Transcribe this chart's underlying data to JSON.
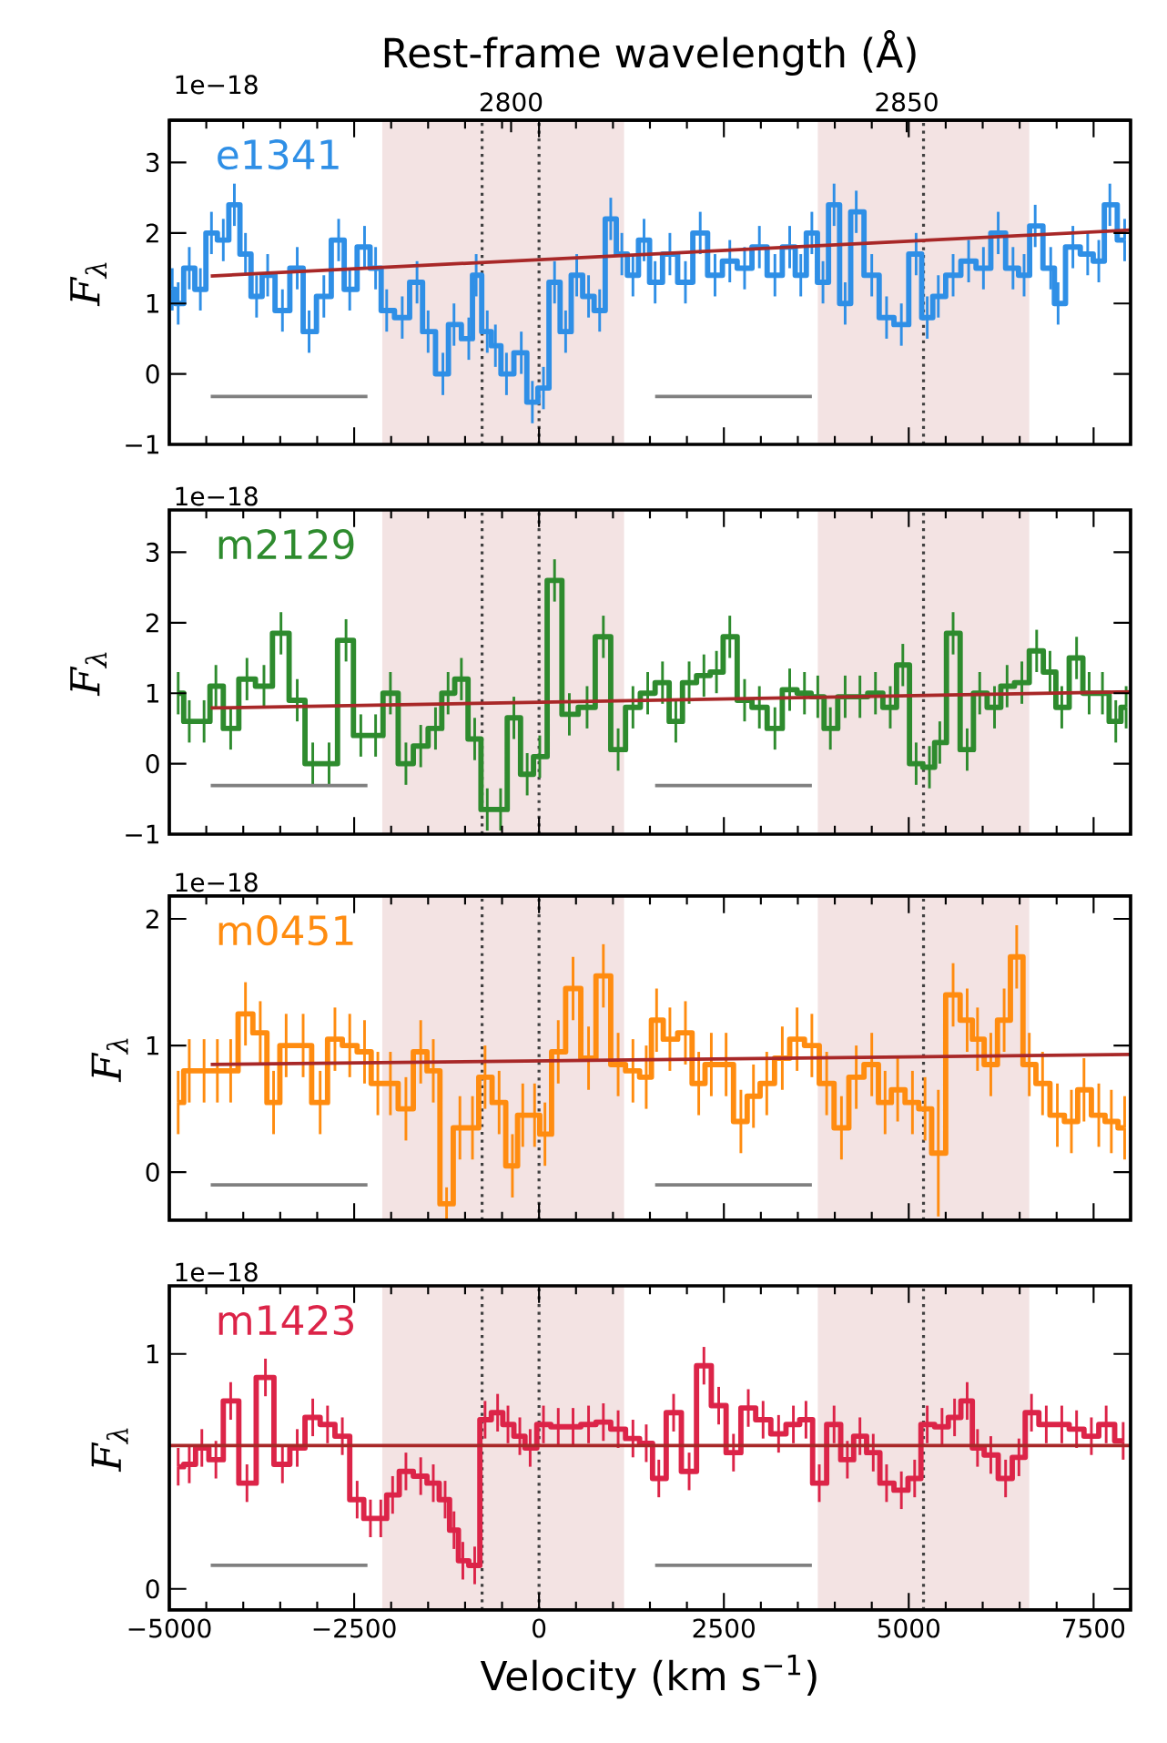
{
  "chart_data": [
    {
      "type": "step",
      "ylabel": "F$_{λ}$",
      "x2label": "Rest-frame wavelength (Å)",
      "annotations": [
        "1e−18"
      ],
      "xlim": [
        -5000,
        8000
      ],
      "ylim": [
        -1,
        3.6
      ],
      "x2lim": [
        2756.8,
        2878.3
      ],
      "x2ticks": [
        2800,
        2850
      ],
      "tick_labels": "y",
      "yticks": [
        {
          "value": -1,
          "label": "−1"
        },
        0,
        1,
        2,
        3
      ],
      "bands": [
        {
          "axis": "x",
          "from": -2120,
          "to": 1150,
          "color": "#f3e3e3"
        },
        {
          "axis": "x",
          "from": 3770,
          "to": 6630,
          "color": "#f3e3e3"
        }
      ],
      "ref_lines": [
        {
          "axis": "x",
          "value": -770,
          "line_style": "dotted",
          "color": "#404040"
        },
        {
          "axis": "x",
          "value": 0,
          "line_style": "dotted",
          "color": "#404040"
        },
        {
          "axis": "x",
          "value": 5200,
          "line_style": "dotted",
          "color": "#404040"
        }
      ],
      "series": [
        {
          "name": "e1341",
          "color": "#2f8fe6",
          "x": [
            -4960,
            -4880,
            -4730,
            -4580,
            -4430,
            -4270,
            -4120,
            -3970,
            -3820,
            -3670,
            -3470,
            -3270,
            -3110,
            -2910,
            -2710,
            -2560,
            -2360,
            -2210,
            -2060,
            -1850,
            -1650,
            -1500,
            -1300,
            -1150,
            -950,
            -850,
            -700,
            -590,
            -440,
            -240,
            -90,
            60,
            210,
            360,
            510,
            670,
            820,
            970,
            1120,
            1270,
            1420,
            1570,
            1770,
            1980,
            2180,
            2380,
            2580,
            2780,
            2980,
            3190,
            3390,
            3540,
            3690,
            3840,
            3990,
            4140,
            4290,
            4500,
            4700,
            4900,
            5100,
            5250,
            5400,
            5600,
            5810,
            6010,
            6210,
            6410,
            6560,
            6710,
            6920,
            7020,
            7220,
            7420,
            7570,
            7720,
            7920
          ],
          "values": [
            1.2,
            1.0,
            1.5,
            1.2,
            2.0,
            1.9,
            2.4,
            1.7,
            1.1,
            1.4,
            0.9,
            1.5,
            0.6,
            1.1,
            1.9,
            1.2,
            1.8,
            1.5,
            0.9,
            0.8,
            1.3,
            0.6,
            0.0,
            0.7,
            0.5,
            1.4,
            0.6,
            0.4,
            0.0,
            0.3,
            -0.4,
            -0.2,
            1.3,
            0.6,
            1.4,
            1.1,
            0.9,
            2.2,
            1.7,
            1.4,
            1.9,
            1.3,
            1.7,
            1.3,
            2.0,
            1.4,
            1.6,
            1.5,
            1.8,
            1.4,
            1.8,
            1.4,
            2.0,
            1.3,
            2.4,
            1.0,
            2.3,
            1.4,
            0.8,
            0.7,
            1.7,
            0.8,
            1.1,
            1.4,
            1.6,
            1.5,
            2.0,
            1.5,
            1.4,
            2.1,
            1.5,
            1.0,
            1.8,
            1.7,
            1.6,
            2.4,
            1.9
          ],
          "errors": [
            0.3,
            0.3,
            0.3,
            0.3,
            0.3,
            0.3,
            0.3,
            0.3,
            0.3,
            0.3,
            0.3,
            0.3,
            0.3,
            0.3,
            0.3,
            0.3,
            0.3,
            0.3,
            0.3,
            0.3,
            0.3,
            0.3,
            0.3,
            0.3,
            0.3,
            0.3,
            0.3,
            0.3,
            0.3,
            0.3,
            0.3,
            0.3,
            0.3,
            0.3,
            0.3,
            0.3,
            0.3,
            0.3,
            0.3,
            0.3,
            0.3,
            0.3,
            0.3,
            0.3,
            0.3,
            0.3,
            0.3,
            0.3,
            0.3,
            0.3,
            0.3,
            0.3,
            0.3,
            0.3,
            0.3,
            0.3,
            0.3,
            0.3,
            0.3,
            0.3,
            0.3,
            0.3,
            0.3,
            0.3,
            0.3,
            0.3,
            0.3,
            0.3,
            0.3,
            0.3,
            0.3,
            0.3,
            0.3,
            0.3,
            0.3,
            0.3,
            0.3
          ]
        },
        {
          "type": "line",
          "color": "#a82828",
          "x": [
            -4440,
            8000
          ],
          "values": [
            1.39,
            2.04
          ]
        },
        {
          "type": "line",
          "color": "#808080",
          "x": [
            -4440,
            -2320
          ],
          "values": [
            -0.32,
            -0.32
          ]
        },
        {
          "type": "line",
          "color": "#808080",
          "x": [
            1570,
            3690
          ],
          "values": [
            -0.32,
            -0.32
          ]
        }
      ]
    },
    {
      "type": "step",
      "ylabel": "F$_{λ}$",
      "annotations": [
        "1e−18"
      ],
      "xlim": [
        -5000,
        8000
      ],
      "ylim": [
        -1,
        3.6
      ],
      "tick_labels": "y",
      "yticks": [
        {
          "value": -1,
          "label": "−1"
        },
        0,
        1,
        2,
        3
      ],
      "bands": [
        {
          "axis": "x",
          "from": -2120,
          "to": 1150,
          "color": "#f3e3e3"
        },
        {
          "axis": "x",
          "from": 3770,
          "to": 6630,
          "color": "#f3e3e3"
        }
      ],
      "ref_lines": [
        {
          "axis": "x",
          "value": -770,
          "line_style": "dotted",
          "color": "#404040"
        },
        {
          "axis": "x",
          "value": 0,
          "line_style": "dotted",
          "color": "#404040"
        },
        {
          "axis": "x",
          "value": 5200,
          "line_style": "dotted",
          "color": "#404040"
        }
      ],
      "series": [
        {
          "name": "m2129",
          "color": "#2e8b2e",
          "x": [
            -4880,
            -4730,
            -4530,
            -4370,
            -4170,
            -3950,
            -3720,
            -3490,
            -3270,
            -3060,
            -2840,
            -2610,
            -2410,
            -2210,
            -2010,
            -1800,
            -1600,
            -1400,
            -1230,
            -1050,
            -870,
            -700,
            -520,
            -340,
            -160,
            10,
            210,
            410,
            650,
            870,
            1070,
            1270,
            1470,
            1670,
            1850,
            2030,
            2230,
            2400,
            2580,
            2780,
            2980,
            3190,
            3390,
            3590,
            3770,
            3940,
            4140,
            4340,
            4550,
            4750,
            4920,
            5100,
            5280,
            5420,
            5600,
            5790,
            5960,
            6160,
            6330,
            6530,
            6730,
            6910,
            7070,
            7270,
            7440,
            7620,
            7800,
            7940
          ],
          "values": [
            1.0,
            0.6,
            0.6,
            1.1,
            0.5,
            1.2,
            1.1,
            1.85,
            0.9,
            0.0,
            0.0,
            1.75,
            0.4,
            0.4,
            1.0,
            0.0,
            0.25,
            0.5,
            1.0,
            1.2,
            0.35,
            -0.65,
            -0.65,
            0.65,
            -0.15,
            0.1,
            2.6,
            0.7,
            0.8,
            1.8,
            0.2,
            0.8,
            1.0,
            1.15,
            0.6,
            1.15,
            1.25,
            1.3,
            1.8,
            0.9,
            0.8,
            0.5,
            1.05,
            1.0,
            0.95,
            0.5,
            0.95,
            0.95,
            1.0,
            0.8,
            1.4,
            0.0,
            -0.05,
            0.3,
            1.85,
            0.2,
            1.0,
            0.8,
            1.1,
            1.15,
            1.6,
            1.3,
            0.8,
            1.5,
            1.0,
            1.0,
            0.6,
            0.8
          ],
          "errors": [
            0.3,
            0.3,
            0.3,
            0.3,
            0.3,
            0.3,
            0.3,
            0.3,
            0.3,
            0.3,
            0.3,
            0.3,
            0.3,
            0.3,
            0.3,
            0.3,
            0.3,
            0.3,
            0.3,
            0.3,
            0.3,
            0.3,
            0.3,
            0.3,
            0.3,
            0.3,
            0.3,
            0.3,
            0.3,
            0.3,
            0.3,
            0.3,
            0.3,
            0.3,
            0.3,
            0.3,
            0.3,
            0.3,
            0.3,
            0.3,
            0.3,
            0.3,
            0.3,
            0.3,
            0.3,
            0.3,
            0.3,
            0.3,
            0.3,
            0.3,
            0.3,
            0.3,
            0.3,
            0.3,
            0.3,
            0.3,
            0.3,
            0.3,
            0.3,
            0.3,
            0.3,
            0.3,
            0.3,
            0.3,
            0.3,
            0.3,
            0.3,
            0.3
          ]
        },
        {
          "type": "line",
          "color": "#a82828",
          "x": [
            -4440,
            8000
          ],
          "values": [
            0.79,
            1.02
          ]
        },
        {
          "type": "line",
          "color": "#808080",
          "x": [
            -4440,
            -2320
          ],
          "values": [
            -0.31,
            -0.31
          ]
        },
        {
          "type": "line",
          "color": "#808080",
          "x": [
            1570,
            3690
          ],
          "values": [
            -0.31,
            -0.31
          ]
        }
      ]
    },
    {
      "type": "step",
      "ylabel": "F$_{λ}$",
      "annotations": [
        "1e−18"
      ],
      "xlim": [
        -5000,
        8000
      ],
      "ylim": [
        -0.38,
        2.18
      ],
      "tick_labels": "y",
      "yticks": [
        0,
        1,
        2
      ],
      "bands": [
        {
          "axis": "x",
          "from": -2120,
          "to": 1150,
          "color": "#f3e3e3"
        },
        {
          "axis": "x",
          "from": 3770,
          "to": 6630,
          "color": "#f3e3e3"
        }
      ],
      "ref_lines": [
        {
          "axis": "x",
          "value": -770,
          "line_style": "dotted",
          "color": "#404040"
        },
        {
          "axis": "x",
          "value": 0,
          "line_style": "dotted",
          "color": "#404040"
        },
        {
          "axis": "x",
          "value": 5200,
          "line_style": "dotted",
          "color": "#404040"
        }
      ],
      "series": [
        {
          "name": "m0451",
          "color": "#ff8c10",
          "x": [
            -4880,
            -4730,
            -4530,
            -4350,
            -4170,
            -3970,
            -3770,
            -3590,
            -3420,
            -3190,
            -2960,
            -2760,
            -2560,
            -2360,
            -2180,
            -2010,
            -1800,
            -1600,
            -1430,
            -1250,
            -1070,
            -900,
            -730,
            -540,
            -360,
            -220,
            -60,
            80,
            260,
            460,
            670,
            870,
            1070,
            1270,
            1450,
            1590,
            1770,
            1980,
            2160,
            2330,
            2530,
            2730,
            2900,
            3080,
            3290,
            3490,
            3690,
            3890,
            4090,
            4290,
            4500,
            4680,
            4850,
            5050,
            5220,
            5400,
            5600,
            5790,
            5930,
            6110,
            6290,
            6460,
            6630,
            6810,
            7010,
            7200,
            7370,
            7570,
            7740,
            7920
          ],
          "values": [
            0.55,
            0.8,
            0.8,
            0.8,
            0.8,
            1.25,
            1.1,
            0.55,
            1.0,
            1.0,
            0.55,
            1.05,
            1.0,
            0.95,
            0.7,
            0.7,
            0.5,
            0.95,
            0.8,
            -0.25,
            0.35,
            0.35,
            0.75,
            0.55,
            0.05,
            0.45,
            0.45,
            0.3,
            0.95,
            1.45,
            0.9,
            1.55,
            0.85,
            0.8,
            0.75,
            1.2,
            1.05,
            1.1,
            0.7,
            0.85,
            0.85,
            0.4,
            0.6,
            0.7,
            0.9,
            1.05,
            1.0,
            0.7,
            0.35,
            0.75,
            0.85,
            0.55,
            0.65,
            0.55,
            0.5,
            0.15,
            1.4,
            1.2,
            1.05,
            0.85,
            1.2,
            1.7,
            0.85,
            0.7,
            0.45,
            0.4,
            0.65,
            0.45,
            0.4,
            0.35
          ],
          "errors": [
            0.25,
            0.25,
            0.25,
            0.25,
            0.25,
            0.25,
            0.25,
            0.25,
            0.25,
            0.25,
            0.25,
            0.25,
            0.25,
            0.25,
            0.25,
            0.25,
            0.25,
            0.25,
            0.25,
            0.13,
            0.25,
            0.25,
            0.25,
            0.25,
            0.25,
            0.25,
            0.25,
            0.25,
            0.25,
            0.25,
            0.25,
            0.25,
            0.25,
            0.25,
            0.25,
            0.25,
            0.25,
            0.25,
            0.25,
            0.25,
            0.25,
            0.25,
            0.25,
            0.25,
            0.25,
            0.25,
            0.25,
            0.25,
            0.25,
            0.25,
            0.25,
            0.25,
            0.25,
            0.25,
            0.25,
            0.5,
            0.25,
            0.25,
            0.25,
            0.25,
            0.25,
            0.25,
            0.25,
            0.25,
            0.25,
            0.25,
            0.25,
            0.25,
            0.25,
            0.25
          ]
        },
        {
          "type": "line",
          "color": "#a82828",
          "x": [
            -4440,
            8000
          ],
          "values": [
            0.85,
            0.93
          ]
        },
        {
          "type": "line",
          "color": "#808080",
          "x": [
            -4440,
            -2320
          ],
          "values": [
            -0.1,
            -0.1
          ]
        },
        {
          "type": "line",
          "color": "#808080",
          "x": [
            1570,
            3690
          ],
          "values": [
            -0.1,
            -0.1
          ]
        }
      ]
    },
    {
      "type": "step",
      "ylabel": "F$_{λ}$",
      "xlabel": "Velocity (km s$^{−1}$)",
      "annotations": [
        "1e−18"
      ],
      "xlim": [
        -5000,
        8000
      ],
      "ylim": [
        -0.09,
        1.29
      ],
      "xticks": [
        {
          "value": -5000,
          "label": "−5000"
        },
        {
          "value": -2500,
          "label": "−2500"
        },
        0,
        2500,
        5000,
        7500
      ],
      "yticks": [
        0,
        1
      ],
      "bands": [
        {
          "axis": "x",
          "from": -2120,
          "to": 1150,
          "color": "#f3e3e3"
        },
        {
          "axis": "x",
          "from": 3770,
          "to": 6630,
          "color": "#f3e3e3"
        }
      ],
      "ref_lines": [
        {
          "axis": "x",
          "value": -770,
          "line_style": "dotted",
          "color": "#404040"
        },
        {
          "axis": "x",
          "value": 0,
          "line_style": "dotted",
          "color": "#404040"
        },
        {
          "axis": "x",
          "value": 5200,
          "line_style": "dotted",
          "color": "#404040"
        }
      ],
      "series": [
        {
          "name": "m1423",
          "color": "#dc2448",
          "x": [
            -4880,
            -4730,
            -4560,
            -4370,
            -4170,
            -3950,
            -3700,
            -3470,
            -3270,
            -3060,
            -2860,
            -2660,
            -2460,
            -2280,
            -2140,
            -1980,
            -1800,
            -1600,
            -1430,
            -1270,
            -1150,
            -1030,
            -870,
            -730,
            -560,
            -420,
            -260,
            -120,
            60,
            260,
            460,
            670,
            870,
            1070,
            1270,
            1450,
            1620,
            1820,
            2030,
            2230,
            2430,
            2630,
            2830,
            3030,
            3240,
            3440,
            3610,
            3790,
            3990,
            4170,
            4340,
            4520,
            4700,
            4900,
            5080,
            5250,
            5450,
            5620,
            5790,
            5930,
            6110,
            6310,
            6490,
            6660,
            6860,
            7070,
            7270,
            7470,
            7670,
            7900
          ],
          "values": [
            0.52,
            0.53,
            0.6,
            0.55,
            0.8,
            0.45,
            0.9,
            0.53,
            0.6,
            0.73,
            0.7,
            0.65,
            0.38,
            0.3,
            0.3,
            0.4,
            0.5,
            0.48,
            0.45,
            0.38,
            0.25,
            0.12,
            0.1,
            0.72,
            0.75,
            0.7,
            0.65,
            0.6,
            0.7,
            0.69,
            0.69,
            0.7,
            0.71,
            0.68,
            0.64,
            0.62,
            0.47,
            0.75,
            0.5,
            0.95,
            0.78,
            0.58,
            0.77,
            0.72,
            0.66,
            0.7,
            0.72,
            0.45,
            0.7,
            0.55,
            0.65,
            0.58,
            0.45,
            0.42,
            0.47,
            0.7,
            0.69,
            0.73,
            0.8,
            0.6,
            0.57,
            0.47,
            0.56,
            0.75,
            0.7,
            0.7,
            0.68,
            0.65,
            0.7,
            0.63
          ],
          "errors": [
            0.08,
            0.08,
            0.08,
            0.08,
            0.08,
            0.08,
            0.08,
            0.08,
            0.08,
            0.08,
            0.08,
            0.08,
            0.08,
            0.08,
            0.08,
            0.08,
            0.08,
            0.08,
            0.08,
            0.08,
            0.08,
            0.08,
            0.08,
            0.08,
            0.08,
            0.08,
            0.08,
            0.08,
            0.08,
            0.08,
            0.08,
            0.08,
            0.08,
            0.08,
            0.08,
            0.08,
            0.08,
            0.08,
            0.08,
            0.08,
            0.08,
            0.08,
            0.08,
            0.08,
            0.08,
            0.08,
            0.08,
            0.08,
            0.08,
            0.08,
            0.08,
            0.08,
            0.08,
            0.08,
            0.08,
            0.08,
            0.08,
            0.08,
            0.08,
            0.08,
            0.08,
            0.08,
            0.08,
            0.08,
            0.08,
            0.08,
            0.08,
            0.08,
            0.08,
            0.08
          ]
        },
        {
          "type": "line",
          "color": "#a82828",
          "x": [
            -5000,
            8000
          ],
          "values": [
            0.61,
            0.61
          ]
        },
        {
          "type": "line",
          "color": "#808080",
          "x": [
            -4440,
            -2320
          ],
          "values": [
            0.1,
            0.1
          ]
        },
        {
          "type": "line",
          "color": "#808080",
          "x": [
            1570,
            3690
          ],
          "values": [
            0.1,
            0.1
          ]
        }
      ]
    }
  ]
}
